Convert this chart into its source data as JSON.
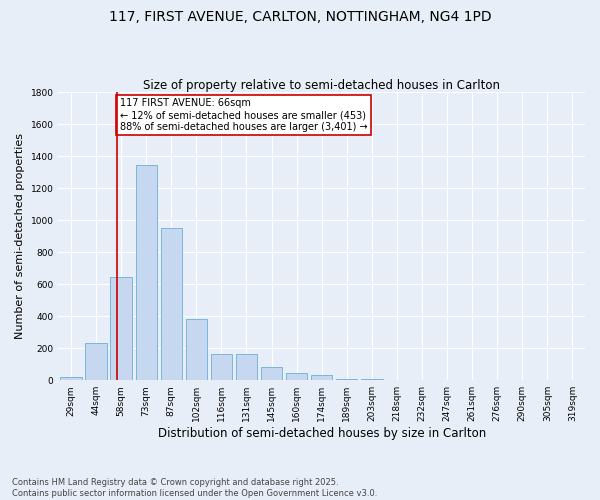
{
  "title": "117, FIRST AVENUE, CARLTON, NOTTINGHAM, NG4 1PD",
  "subtitle": "Size of property relative to semi-detached houses in Carlton",
  "xlabel": "Distribution of semi-detached houses by size in Carlton",
  "ylabel": "Number of semi-detached properties",
  "categories": [
    "29sqm",
    "44sqm",
    "58sqm",
    "73sqm",
    "87sqm",
    "102sqm",
    "116sqm",
    "131sqm",
    "145sqm",
    "160sqm",
    "174sqm",
    "189sqm",
    "203sqm",
    "218sqm",
    "232sqm",
    "247sqm",
    "261sqm",
    "276sqm",
    "290sqm",
    "305sqm",
    "319sqm"
  ],
  "values": [
    20,
    230,
    645,
    1345,
    950,
    385,
    165,
    165,
    80,
    45,
    30,
    10,
    5,
    0,
    0,
    0,
    0,
    0,
    0,
    0,
    0
  ],
  "bar_color": "#c5d8f0",
  "bar_edge_color": "#6baed6",
  "vline_x": 1.85,
  "vline_color": "#cc0000",
  "annotation_text": "117 FIRST AVENUE: 66sqm\n← 12% of semi-detached houses are smaller (453)\n88% of semi-detached houses are larger (3,401) →",
  "annotation_box_color": "#ffffff",
  "annotation_box_edge": "#cc0000",
  "ylim": [
    0,
    1800
  ],
  "yticks": [
    0,
    200,
    400,
    600,
    800,
    1000,
    1200,
    1400,
    1600,
    1800
  ],
  "background_color": "#e8eef8",
  "grid_color": "#ffffff",
  "footer_line1": "Contains HM Land Registry data © Crown copyright and database right 2025.",
  "footer_line2": "Contains public sector information licensed under the Open Government Licence v3.0.",
  "title_fontsize": 10,
  "subtitle_fontsize": 8.5,
  "tick_fontsize": 6.5,
  "ylabel_fontsize": 8,
  "xlabel_fontsize": 8.5,
  "annotation_fontsize": 7,
  "footer_fontsize": 6
}
